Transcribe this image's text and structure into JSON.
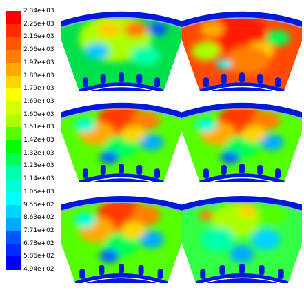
{
  "legend": {
    "labels": [
      "2.34e+03",
      "2.25e+03",
      "2.16e+03",
      "2.06e+03",
      "1.97e+03",
      "1.88e+03",
      "1.79e+03",
      "1.69e+03",
      "1.60e+03",
      "1.51e+03",
      "1.42e+03",
      "1.32e+03",
      "1.23e+03",
      "1.14e+03",
      "1.05e+03",
      "9.55e+02",
      "8.63e+02",
      "7.71e+02",
      "6.78e+02",
      "5.86e+02",
      "4.94e+02"
    ],
    "colors": [
      "#ff0000",
      "#ff2a00",
      "#ff5500",
      "#ff7f00",
      "#ffaa00",
      "#ffd400",
      "#ffff00",
      "#d4ff00",
      "#aaff00",
      "#55ff00",
      "#00ff00",
      "#00ff55",
      "#00ffaa",
      "#00ffd4",
      "#00ffff",
      "#00d4ff",
      "#00aaff",
      "#0055ff",
      "#002aff",
      "#0000ff"
    ]
  },
  "panels": [
    {
      "id": "top-left",
      "theme": "mixed"
    },
    {
      "id": "top-right",
      "theme": "hot"
    },
    {
      "id": "middle-left",
      "theme": "warm"
    },
    {
      "id": "middle-right",
      "theme": "warm"
    },
    {
      "id": "bottom-left",
      "theme": "warm"
    },
    {
      "id": "bottom-right",
      "theme": "cool"
    }
  ]
}
